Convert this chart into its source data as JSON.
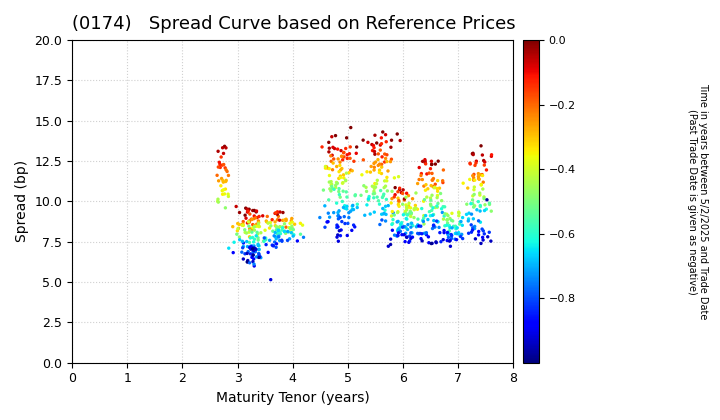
{
  "title": "(0174)   Spread Curve based on Reference Prices",
  "xlabel": "Maturity Tenor (years)",
  "ylabel": "Spread (bp)",
  "colorbar_label": "Time in years between 5/2/2025 and Trade Date\n(Past Trade Date is given as negative)",
  "colorbar_ticks": [
    0.0,
    -0.2,
    -0.4,
    -0.6,
    -0.8
  ],
  "xlim": [
    0,
    8
  ],
  "ylim": [
    0.0,
    20.0
  ],
  "xticks": [
    0,
    1,
    2,
    3,
    4,
    5,
    6,
    7,
    8
  ],
  "yticks": [
    0.0,
    2.5,
    5.0,
    7.5,
    10.0,
    12.5,
    15.0,
    17.5,
    20.0
  ],
  "vmin": -1.0,
  "vmax": 0.0,
  "background_color": "#ffffff",
  "grid_color": "#d0d0d0",
  "marker_size": 6
}
